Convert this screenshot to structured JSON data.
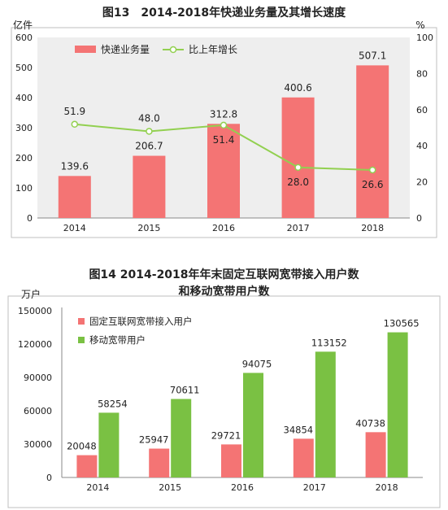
{
  "chart_data": [
    {
      "type": "bar",
      "title": "图13　2014-2018年快递业务量及其增长速度",
      "ylabel": "亿件",
      "y2label": "%",
      "categories": [
        "2014",
        "2015",
        "2016",
        "2017",
        "2018"
      ],
      "ylim": [
        0,
        600
      ],
      "yticks": [
        "0",
        "100",
        "200",
        "300",
        "400",
        "500",
        "600"
      ],
      "y2lim": [
        0,
        100
      ],
      "y2ticks": [
        "0",
        "20",
        "40",
        "60",
        "80",
        "100"
      ],
      "legend_position": "top",
      "grid": false,
      "series": [
        {
          "name": "快递业务量",
          "type": "bar",
          "axis": "left",
          "color": "#f47474",
          "values": [
            139.6,
            206.7,
            312.8,
            400.6,
            507.1
          ],
          "labels": [
            "139.6",
            "206.7",
            "312.8",
            "400.6",
            "507.1"
          ]
        },
        {
          "name": "比上年增长",
          "type": "line",
          "axis": "right",
          "color": "#92d050",
          "values": [
            51.9,
            48.0,
            51.4,
            28.0,
            26.6
          ],
          "labels": [
            "51.9",
            "48.0",
            "51.4",
            "28.0",
            "26.6"
          ]
        }
      ]
    },
    {
      "type": "bar",
      "title": "图14 2014-2018年年末固定互联网宽带接入用户数",
      "subtitle": "和移动宽带用户数",
      "ylabel": "万户",
      "categories": [
        "2014",
        "2015",
        "2016",
        "2017",
        "2018"
      ],
      "ylim": [
        0,
        150000
      ],
      "yticks": [
        "0",
        "30000",
        "60000",
        "90000",
        "120000",
        "150000"
      ],
      "legend_position": "top-left",
      "grid": false,
      "series": [
        {
          "name": "固定互联网宽带接入用户",
          "color": "#f47474",
          "values": [
            20048,
            25947,
            29721,
            34854,
            40738
          ],
          "labels": [
            "20048",
            "25947",
            "29721",
            "34854",
            "40738"
          ]
        },
        {
          "name": "移动宽带用户",
          "color": "#7ac143",
          "values": [
            58254,
            70611,
            94075,
            113152,
            130565
          ],
          "labels": [
            "58254",
            "70611",
            "94075",
            "113152",
            "130565"
          ]
        }
      ]
    }
  ]
}
